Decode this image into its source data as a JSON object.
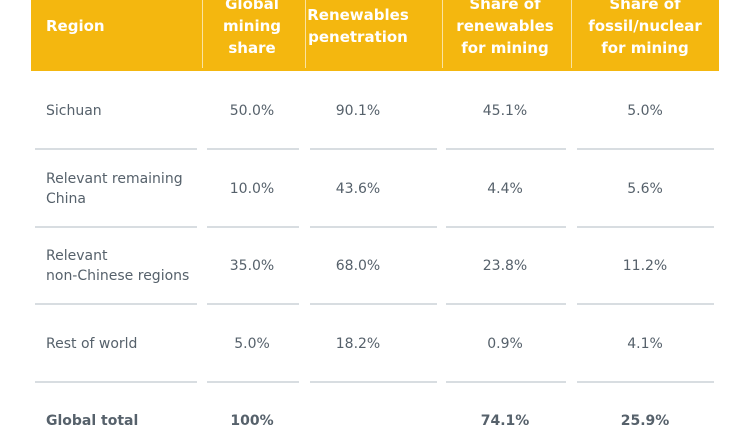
{
  "colors": {
    "header_bg": "#F4B70F",
    "text": "#56616b",
    "rule": "#d8dde1"
  },
  "headers": [
    "Region",
    "Global\nmining\nshare",
    "Renewables\npenetration",
    "Share of\nrenewables\nfor mining",
    "Share of\nfossil/nuclear\nfor mining"
  ],
  "rows": [
    {
      "region": "Sichuan",
      "values": [
        "50.0%",
        "90.1%",
        "45.1%",
        "5.0%"
      ]
    },
    {
      "region": "Relevant remaining\nChina",
      "values": [
        "10.0%",
        "43.6%",
        "4.4%",
        "5.6%"
      ]
    },
    {
      "region": "Relevant\nnon-Chinese regions",
      "values": [
        "35.0%",
        "68.0%",
        "23.8%",
        "11.2%"
      ]
    },
    {
      "region": "Rest of world",
      "values": [
        "5.0%",
        "18.2%",
        "0.9%",
        "4.1%"
      ]
    },
    {
      "region": "Global total",
      "values": [
        "100%",
        "",
        "74.1%",
        "25.9%"
      ]
    }
  ]
}
